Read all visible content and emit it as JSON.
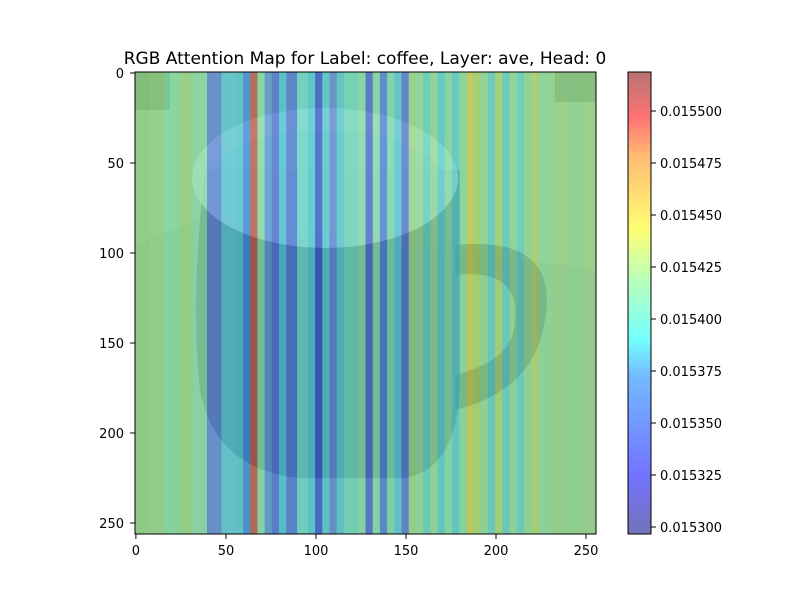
{
  "figure": {
    "title": "RGB Attention Map for Label: coffee, Layer: ave, Head: 0"
  },
  "image": {
    "subject": "coffee mug",
    "tint_color": "#8fd7a8"
  },
  "attention_columns": [
    {
      "x0": 0,
      "x1": 8,
      "color": "#9ed68c"
    },
    {
      "x0": 8,
      "x1": 16,
      "color": "#a6db8d"
    },
    {
      "x0": 16,
      "x1": 24,
      "color": "#8fe6b0"
    },
    {
      "x0": 24,
      "x1": 32,
      "color": "#a5db8d"
    },
    {
      "x0": 32,
      "x1": 40,
      "color": "#95e3b5"
    },
    {
      "x0": 40,
      "x1": 48,
      "color": "#5c78f0"
    },
    {
      "x0": 48,
      "x1": 56,
      "color": "#59c8f0"
    },
    {
      "x0": 56,
      "x1": 60,
      "color": "#4fc7e8"
    },
    {
      "x0": 60,
      "x1": 64,
      "color": "#3b7af5"
    },
    {
      "x0": 64,
      "x1": 68,
      "color": "#d04040"
    },
    {
      "x0": 68,
      "x1": 72,
      "color": "#8ee6b2"
    },
    {
      "x0": 72,
      "x1": 76,
      "color": "#5a8cf3"
    },
    {
      "x0": 76,
      "x1": 80,
      "color": "#4a5cf2"
    },
    {
      "x0": 80,
      "x1": 84,
      "color": "#48c2ef"
    },
    {
      "x0": 84,
      "x1": 90,
      "color": "#4a66ef"
    },
    {
      "x0": 90,
      "x1": 96,
      "color": "#6fdce0"
    },
    {
      "x0": 96,
      "x1": 100,
      "color": "#4acbef"
    },
    {
      "x0": 100,
      "x1": 104,
      "color": "#2f3de6"
    },
    {
      "x0": 104,
      "x1": 108,
      "color": "#56c9ea"
    },
    {
      "x0": 108,
      "x1": 112,
      "color": "#5c7af0"
    },
    {
      "x0": 112,
      "x1": 116,
      "color": "#52c8ea"
    },
    {
      "x0": 116,
      "x1": 124,
      "color": "#73ddcf"
    },
    {
      "x0": 124,
      "x1": 128,
      "color": "#8fe5b3"
    },
    {
      "x0": 128,
      "x1": 132,
      "color": "#4a4ff0"
    },
    {
      "x0": 132,
      "x1": 136,
      "color": "#8ce4b6"
    },
    {
      "x0": 136,
      "x1": 140,
      "color": "#4d6ff2"
    },
    {
      "x0": 140,
      "x1": 144,
      "color": "#80e2c0"
    },
    {
      "x0": 144,
      "x1": 148,
      "color": "#58c6ef"
    },
    {
      "x0": 148,
      "x1": 152,
      "color": "#4f66ef"
    },
    {
      "x0": 152,
      "x1": 156,
      "color": "#a8dc8c"
    },
    {
      "x0": 156,
      "x1": 160,
      "color": "#9fe1a4"
    },
    {
      "x0": 160,
      "x1": 164,
      "color": "#68d6d6"
    },
    {
      "x0": 164,
      "x1": 168,
      "color": "#9ee1a0"
    },
    {
      "x0": 168,
      "x1": 172,
      "color": "#5bd0e4"
    },
    {
      "x0": 172,
      "x1": 176,
      "color": "#8de4b6"
    },
    {
      "x0": 176,
      "x1": 180,
      "color": "#5ad0e0"
    },
    {
      "x0": 180,
      "x1": 184,
      "color": "#8ee4b2"
    },
    {
      "x0": 184,
      "x1": 188,
      "color": "#e8d24a"
    },
    {
      "x0": 188,
      "x1": 192,
      "color": "#b8dc6a"
    },
    {
      "x0": 192,
      "x1": 196,
      "color": "#9be0a4"
    },
    {
      "x0": 196,
      "x1": 200,
      "color": "#66d4da"
    },
    {
      "x0": 200,
      "x1": 204,
      "color": "#bcdc76"
    },
    {
      "x0": 204,
      "x1": 208,
      "color": "#66d3d8"
    },
    {
      "x0": 208,
      "x1": 212,
      "color": "#9ce0a4"
    },
    {
      "x0": 212,
      "x1": 216,
      "color": "#6ad8d6"
    },
    {
      "x0": 216,
      "x1": 220,
      "color": "#9be0a6"
    },
    {
      "x0": 220,
      "x1": 224,
      "color": "#c6dc6c"
    },
    {
      "x0": 224,
      "x1": 232,
      "color": "#9ee0a2"
    },
    {
      "x0": 232,
      "x1": 240,
      "color": "#a9db90"
    },
    {
      "x0": 240,
      "x1": 248,
      "color": "#9fdc98"
    },
    {
      "x0": 248,
      "x1": 256,
      "color": "#a8db90"
    }
  ],
  "axes": {
    "x_ticks": [
      "0",
      "50",
      "100",
      "150",
      "200",
      "250"
    ],
    "y_ticks": [
      "0",
      "50",
      "100",
      "150",
      "200",
      "250"
    ]
  },
  "colorbar": {
    "ticks": [
      "0.015500",
      "0.015475",
      "0.015450",
      "0.015425",
      "0.015400",
      "0.015375",
      "0.015350",
      "0.015325",
      "0.015300"
    ],
    "colormap": [
      "#00007f",
      "#0000ff",
      "#0080ff",
      "#00ffff",
      "#80ff80",
      "#ffff00",
      "#ff8000",
      "#ff0000",
      "#7f0000"
    ]
  }
}
